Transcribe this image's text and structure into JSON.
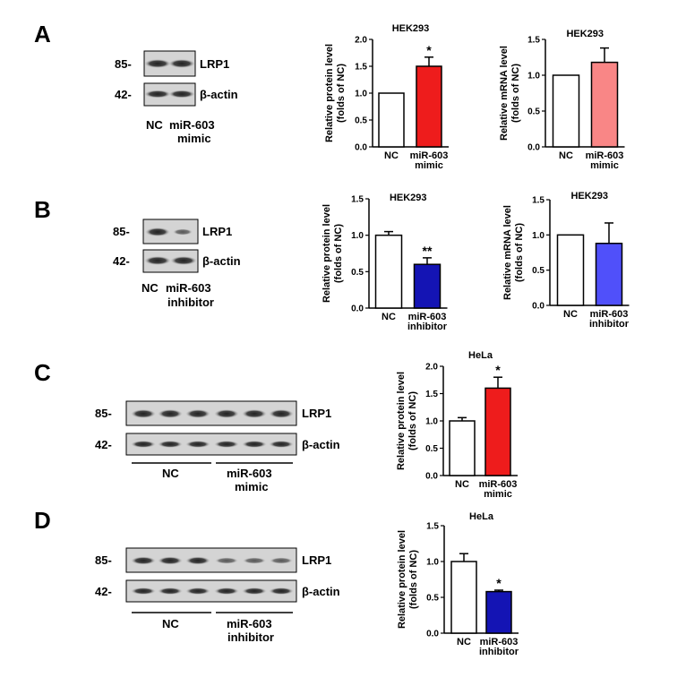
{
  "panels": [
    {
      "letter": "A",
      "blot": {
        "markers": [
          "85-",
          "42-"
        ],
        "proteins": [
          "LRP1",
          "β-actin"
        ],
        "groups": [
          "NC",
          "miR-603",
          "mimic"
        ]
      }
    },
    {
      "letter": "B",
      "blot": {
        "markers": [
          "85-",
          "42-"
        ],
        "proteins": [
          "LRP1",
          "β-actin"
        ],
        "groups": [
          "NC",
          "miR-603",
          "inhibitor"
        ]
      }
    },
    {
      "letter": "C",
      "blot": {
        "markers": [
          "85-",
          "42-"
        ],
        "proteins": [
          "LRP1",
          "β-actin"
        ],
        "groups": [
          "NC",
          "miR-603",
          "mimic"
        ]
      }
    },
    {
      "letter": "D",
      "blot": {
        "markers": [
          "85-",
          "42-"
        ],
        "proteins": [
          "LRP1",
          "β-actin"
        ],
        "groups": [
          "NC",
          "miR-603",
          "inhibitor"
        ]
      }
    }
  ],
  "chart_data": [
    {
      "id": "A-protein",
      "type": "bar",
      "title": "HEK293",
      "ylabel": [
        "Relative protein level",
        "(folds of NC)"
      ],
      "categories": [
        [
          "NC"
        ],
        [
          "miR-603",
          "mimic"
        ]
      ],
      "values": [
        1.0,
        1.5
      ],
      "errors": [
        0.0,
        0.17
      ],
      "ylim": [
        0,
        2.0
      ],
      "yticks": [
        "0.0",
        "0.5",
        "1.0",
        "1.5",
        "2.0"
      ],
      "colors": [
        "#ffffff",
        "#ee1c1c"
      ],
      "significance": [
        "",
        "*"
      ]
    },
    {
      "id": "A-mrna",
      "type": "bar",
      "title": "HEK293",
      "ylabel": [
        "Relative mRNA level",
        "(folds of NC)"
      ],
      "categories": [
        [
          "NC"
        ],
        [
          "miR-603",
          "mimic"
        ]
      ],
      "values": [
        1.0,
        1.18
      ],
      "errors": [
        0.0,
        0.2
      ],
      "ylim": [
        0,
        1.5
      ],
      "yticks": [
        "0.0",
        "0.5",
        "1.0",
        "1.5"
      ],
      "colors": [
        "#ffffff",
        "#f98686"
      ],
      "significance": [
        "",
        ""
      ]
    },
    {
      "id": "B-protein",
      "type": "bar",
      "title": "HEK293",
      "ylabel": [
        "Relative protein level",
        "(folds of NC)"
      ],
      "categories": [
        [
          "NC"
        ],
        [
          "miR-603",
          "inhibitor"
        ]
      ],
      "values": [
        1.0,
        0.6
      ],
      "errors": [
        0.05,
        0.09
      ],
      "ylim": [
        0,
        1.5
      ],
      "yticks": [
        "0.0",
        "0.5",
        "1.0",
        "1.5"
      ],
      "colors": [
        "#ffffff",
        "#1414b4"
      ],
      "significance": [
        "",
        "**"
      ]
    },
    {
      "id": "B-mrna",
      "type": "bar",
      "title": "HEK293",
      "ylabel": [
        "Relative mRNA level",
        "(folds of NC)"
      ],
      "categories": [
        [
          "NC"
        ],
        [
          "miR-603",
          "inhibitor"
        ]
      ],
      "values": [
        1.0,
        0.88
      ],
      "errors": [
        0.0,
        0.29
      ],
      "ylim": [
        0,
        1.5
      ],
      "yticks": [
        "0.0",
        "0.5",
        "1.0",
        "1.5"
      ],
      "colors": [
        "#ffffff",
        "#5050fa"
      ],
      "significance": [
        "",
        ""
      ]
    },
    {
      "id": "C-protein",
      "type": "bar",
      "title": "HeLa",
      "ylabel": [
        "Relative protein level",
        "(folds of NC)"
      ],
      "categories": [
        [
          "NC"
        ],
        [
          "miR-603",
          "mimic"
        ]
      ],
      "values": [
        1.0,
        1.6
      ],
      "errors": [
        0.06,
        0.2
      ],
      "ylim": [
        0,
        2.0
      ],
      "yticks": [
        "0.0",
        "0.5",
        "1.0",
        "1.5",
        "2.0"
      ],
      "colors": [
        "#ffffff",
        "#ee1c1c"
      ],
      "significance": [
        "",
        "*"
      ]
    },
    {
      "id": "D-protein",
      "type": "bar",
      "title": "HeLa",
      "ylabel": [
        "Relative protein level",
        "(folds of NC)"
      ],
      "categories": [
        [
          "NC"
        ],
        [
          "miR-603",
          "inhibitor"
        ]
      ],
      "values": [
        1.0,
        0.58
      ],
      "errors": [
        0.11,
        0.02
      ],
      "ylim": [
        0,
        1.5
      ],
      "yticks": [
        "0.0",
        "0.5",
        "1.0",
        "1.5"
      ],
      "colors": [
        "#ffffff",
        "#1414b4"
      ],
      "significance": [
        "",
        "*"
      ]
    }
  ]
}
